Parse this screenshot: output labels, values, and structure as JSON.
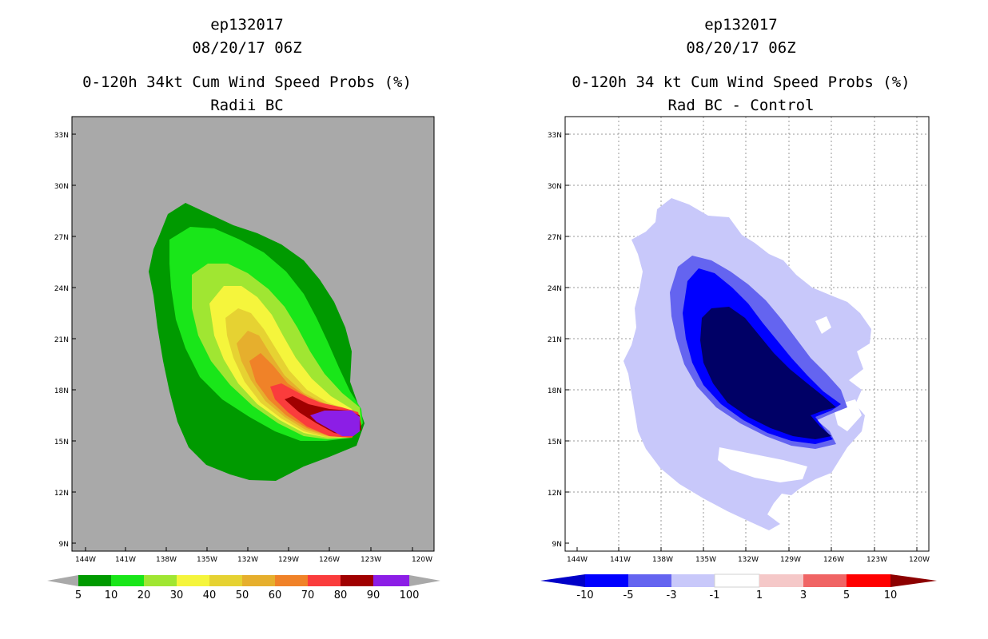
{
  "colors": {
    "background": "#ffffff",
    "land_gray": "#a9a9a9",
    "prob_levels": [
      "#009a00",
      "#19e619",
      "#a0e632",
      "#f5f53c",
      "#e6d232",
      "#e6af2d",
      "#f08228",
      "#fa3c3c",
      "#a00000",
      "#8c1ee6"
    ],
    "diff_levels": [
      "#0000c8",
      "#0000ff",
      "#6464f0",
      "#c8c8fa",
      "#ffffff",
      "#f5c8c8",
      "#f06464",
      "#ff0000",
      "#8c0000"
    ]
  },
  "left_panel": {
    "title_line1": "ep132017",
    "title_line2": "08/20/17 06Z",
    "title_line3": "0-120h 34kt Cum Wind Speed Probs (%)",
    "title_line4": "Radii BC",
    "legend_labels": [
      "5",
      "10",
      "20",
      "30",
      "40",
      "50",
      "60",
      "70",
      "80",
      "90",
      "100"
    ]
  },
  "right_panel": {
    "title_line1": "ep132017",
    "title_line2": "08/20/17 06Z",
    "title_line3": "0-120h 34 kt Cum Wind Speed Probs (%)",
    "title_line4": "Rad BC - Control",
    "legend_labels": [
      "-10",
      "-5",
      "-3",
      "-1",
      "1",
      "3",
      "5",
      "10"
    ]
  },
  "axes": {
    "lat_labels": [
      "9N",
      "12N",
      "15N",
      "18N",
      "21N",
      "24N",
      "27N",
      "30N",
      "33N"
    ],
    "lon_labels": [
      "144W",
      "141W",
      "138W",
      "135W",
      "132W",
      "129W",
      "126W",
      "123W",
      "120W"
    ]
  }
}
